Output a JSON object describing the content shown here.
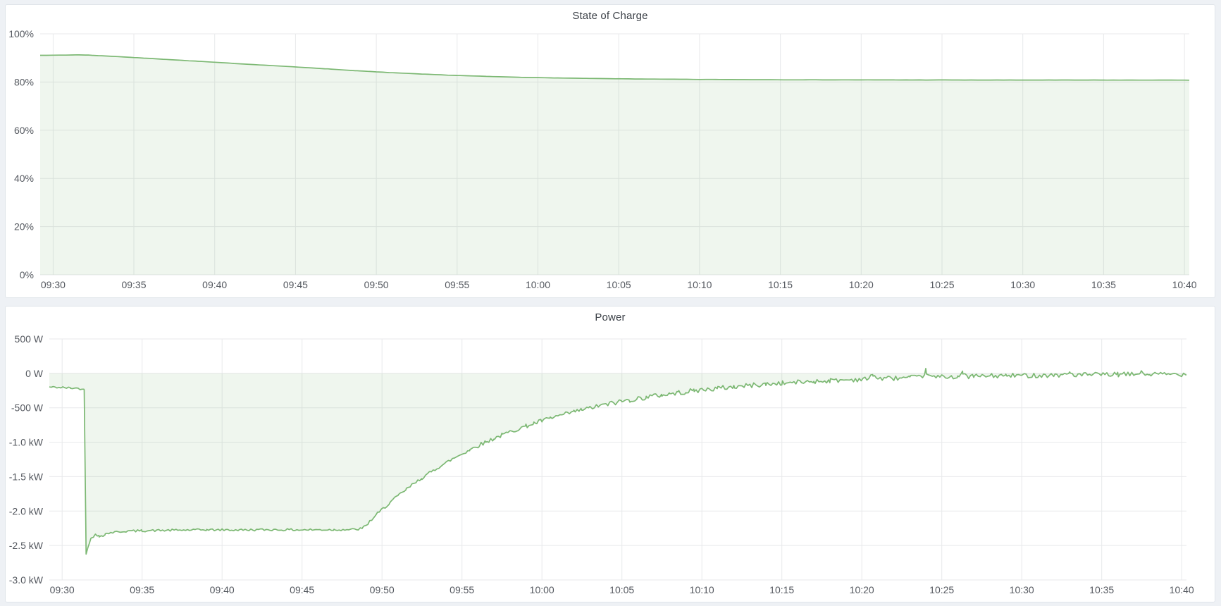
{
  "app": {
    "kind": "dashboard",
    "panel_count": 2
  },
  "colors": {
    "series_green": "#7cb873",
    "series_fill": "rgba(124,184,115,0.12)",
    "grid": "#e8e9eb",
    "tick_label": "#54585f",
    "title_text": "#3c4148",
    "page_bg": "#eef1f5",
    "panel_bg": "#ffffff",
    "panel_border": "#e0e5ea"
  },
  "chart_data": [
    {
      "type": "area",
      "title": "State of Charge",
      "ylabel": "",
      "xlabel": "",
      "unit": "%",
      "legend": "none",
      "grid": true,
      "x_domain_minutes": [
        -0.8,
        70.3
      ],
      "x_ticks": [
        {
          "t": 0,
          "label": "09:30"
        },
        {
          "t": 5,
          "label": "09:35"
        },
        {
          "t": 10,
          "label": "09:40"
        },
        {
          "t": 15,
          "label": "09:45"
        },
        {
          "t": 20,
          "label": "09:50"
        },
        {
          "t": 25,
          "label": "09:55"
        },
        {
          "t": 30,
          "label": "10:00"
        },
        {
          "t": 35,
          "label": "10:05"
        },
        {
          "t": 40,
          "label": "10:10"
        },
        {
          "t": 45,
          "label": "10:15"
        },
        {
          "t": 50,
          "label": "10:20"
        },
        {
          "t": 55,
          "label": "10:25"
        },
        {
          "t": 60,
          "label": "10:30"
        },
        {
          "t": 65,
          "label": "10:35"
        },
        {
          "t": 70,
          "label": "10:40"
        }
      ],
      "y_domain": [
        0,
        100
      ],
      "y_ticks": [
        {
          "v": 0,
          "label": "0%"
        },
        {
          "v": 20,
          "label": "20%"
        },
        {
          "v": 40,
          "label": "40%"
        },
        {
          "v": 60,
          "label": "60%"
        },
        {
          "v": 80,
          "label": "80%"
        },
        {
          "v": 100,
          "label": "100%"
        }
      ],
      "line_color": "#7cb873",
      "fill_color": "rgba(124,184,115,0.12)",
      "baseline": 0,
      "seed": 7,
      "sample_dt": 0.4,
      "noise": [
        [
          -0.8,
          70.3,
          0.03
        ]
      ],
      "spikes": [],
      "keypoints": [
        [
          -0.8,
          91.1
        ],
        [
          0,
          91.12
        ],
        [
          0.8,
          91.18
        ],
        [
          1.5,
          91.28
        ],
        [
          2.2,
          91.18
        ],
        [
          3,
          90.9
        ],
        [
          4,
          90.55
        ],
        [
          5,
          90.15
        ],
        [
          6,
          89.78
        ],
        [
          7,
          89.4
        ],
        [
          8,
          89.0
        ],
        [
          9,
          88.6
        ],
        [
          10,
          88.2
        ],
        [
          11,
          87.8
        ],
        [
          12,
          87.42
        ],
        [
          13,
          87.03
        ],
        [
          14,
          86.65
        ],
        [
          15,
          86.25
        ],
        [
          16,
          85.85
        ],
        [
          17,
          85.45
        ],
        [
          18,
          85.0
        ],
        [
          18.7,
          84.72
        ],
        [
          19.5,
          84.4
        ],
        [
          20,
          84.2
        ],
        [
          21,
          83.85
        ],
        [
          22,
          83.55
        ],
        [
          23,
          83.25
        ],
        [
          24,
          82.98
        ],
        [
          25,
          82.72
        ],
        [
          26,
          82.5
        ],
        [
          27,
          82.3
        ],
        [
          28,
          82.12
        ],
        [
          29,
          81.96
        ],
        [
          30,
          81.82
        ],
        [
          31,
          81.7
        ],
        [
          32,
          81.6
        ],
        [
          33,
          81.5
        ],
        [
          34,
          81.42
        ],
        [
          35,
          81.35
        ],
        [
          36,
          81.28
        ],
        [
          37,
          81.22
        ],
        [
          38,
          81.17
        ],
        [
          39,
          81.12
        ],
        [
          40,
          81.08
        ],
        [
          42,
          81.02
        ],
        [
          44,
          80.97
        ],
        [
          46,
          80.93
        ],
        [
          48,
          80.9
        ],
        [
          50,
          80.88
        ],
        [
          53,
          80.86
        ],
        [
          56,
          80.84
        ],
        [
          60,
          80.82
        ],
        [
          65,
          80.81
        ],
        [
          70.3,
          80.8
        ]
      ]
    },
    {
      "type": "area",
      "title": "Power",
      "ylabel": "",
      "xlabel": "",
      "unit": "W",
      "legend": "none",
      "grid": true,
      "x_domain_minutes": [
        -0.8,
        70.3
      ],
      "x_ticks": [
        {
          "t": 0,
          "label": "09:30"
        },
        {
          "t": 5,
          "label": "09:35"
        },
        {
          "t": 10,
          "label": "09:40"
        },
        {
          "t": 15,
          "label": "09:45"
        },
        {
          "t": 20,
          "label": "09:50"
        },
        {
          "t": 25,
          "label": "09:55"
        },
        {
          "t": 30,
          "label": "10:00"
        },
        {
          "t": 35,
          "label": "10:05"
        },
        {
          "t": 40,
          "label": "10:10"
        },
        {
          "t": 45,
          "label": "10:15"
        },
        {
          "t": 50,
          "label": "10:20"
        },
        {
          "t": 55,
          "label": "10:25"
        },
        {
          "t": 60,
          "label": "10:30"
        },
        {
          "t": 65,
          "label": "10:35"
        },
        {
          "t": 70,
          "label": "10:40"
        }
      ],
      "y_domain": [
        -3000,
        500
      ],
      "y_ticks": [
        {
          "v": 500,
          "label": "500 W"
        },
        {
          "v": 0,
          "label": "0 W"
        },
        {
          "v": -500,
          "label": "-500 W"
        },
        {
          "v": -1000,
          "label": "-1.0 kW"
        },
        {
          "v": -1500,
          "label": "-1.5 kW"
        },
        {
          "v": -2000,
          "label": "-2.0 kW"
        },
        {
          "v": -2500,
          "label": "-2.5 kW"
        },
        {
          "v": -3000,
          "label": "-3.0 kW"
        }
      ],
      "line_color": "#7cb873",
      "fill_color": "rgba(124,184,115,0.12)",
      "baseline": 0,
      "seed": 42,
      "sample_dt": 0.12,
      "noise": [
        [
          -0.8,
          1.3,
          14
        ],
        [
          1.3,
          1.9,
          6
        ],
        [
          1.9,
          2.6,
          25
        ],
        [
          2.6,
          18.6,
          16
        ],
        [
          18.6,
          25,
          22
        ],
        [
          25,
          34,
          30
        ],
        [
          34,
          44,
          36
        ],
        [
          44,
          70.3,
          34
        ]
      ],
      "spikes": [
        [
          50.7,
          70
        ],
        [
          54,
          95
        ],
        [
          56.3,
          45
        ],
        [
          63,
          38
        ],
        [
          67.4,
          32
        ]
      ],
      "keypoints": [
        [
          -0.8,
          -200
        ],
        [
          0,
          -205
        ],
        [
          0.5,
          -212
        ],
        [
          1.0,
          -218
        ],
        [
          1.38,
          -235
        ],
        [
          1.5,
          -2620
        ],
        [
          1.62,
          -2520
        ],
        [
          1.8,
          -2400
        ],
        [
          2.0,
          -2345
        ],
        [
          2.3,
          -2370
        ],
        [
          2.7,
          -2330
        ],
        [
          3.2,
          -2308
        ],
        [
          4,
          -2292
        ],
        [
          5,
          -2285
        ],
        [
          7,
          -2278
        ],
        [
          9,
          -2272
        ],
        [
          11,
          -2275
        ],
        [
          13,
          -2270
        ],
        [
          15,
          -2273
        ],
        [
          17,
          -2270
        ],
        [
          18.4,
          -2268
        ],
        [
          18.8,
          -2252
        ],
        [
          19.2,
          -2160
        ],
        [
          19.6,
          -2065
        ],
        [
          20,
          -1978
        ],
        [
          20.5,
          -1877
        ],
        [
          21,
          -1780
        ],
        [
          21.5,
          -1689
        ],
        [
          22,
          -1602
        ],
        [
          22.5,
          -1520
        ],
        [
          23,
          -1442
        ],
        [
          23.5,
          -1368
        ],
        [
          24,
          -1298
        ],
        [
          24.5,
          -1231
        ],
        [
          25,
          -1168
        ],
        [
          25.5,
          -1108
        ],
        [
          26,
          -1051
        ],
        [
          26.5,
          -997
        ],
        [
          27,
          -946
        ],
        [
          27.5,
          -897
        ],
        [
          28,
          -851
        ],
        [
          28.5,
          -808
        ],
        [
          29,
          -766
        ],
        [
          29.5,
          -727
        ],
        [
          30,
          -690
        ],
        [
          30.5,
          -654
        ],
        [
          31,
          -620
        ],
        [
          31.5,
          -589
        ],
        [
          32,
          -558
        ],
        [
          32.5,
          -530
        ],
        [
          33,
          -502
        ],
        [
          33.5,
          -477
        ],
        [
          34,
          -452
        ],
        [
          34.5,
          -429
        ],
        [
          35,
          -407
        ],
        [
          35.5,
          -386
        ],
        [
          36,
          -366
        ],
        [
          36.5,
          -348
        ],
        [
          37,
          -330
        ],
        [
          37.5,
          -313
        ],
        [
          38,
          -297
        ],
        [
          38.5,
          -282
        ],
        [
          39,
          -267
        ],
        [
          39.5,
          -253
        ],
        [
          40,
          -240
        ],
        [
          41,
          -217
        ],
        [
          42,
          -195
        ],
        [
          43,
          -176
        ],
        [
          44,
          -159
        ],
        [
          45,
          -143
        ],
        [
          46,
          -129
        ],
        [
          47,
          -117
        ],
        [
          48,
          -105
        ],
        [
          49,
          -95
        ],
        [
          50,
          -86
        ],
        [
          51,
          -77
        ],
        [
          52,
          -70
        ],
        [
          53,
          -63
        ],
        [
          54,
          -57
        ],
        [
          55,
          -51
        ],
        [
          56,
          -46
        ],
        [
          57,
          -42
        ],
        [
          58,
          -38
        ],
        [
          59,
          -34
        ],
        [
          60,
          -31
        ],
        [
          62,
          -25
        ],
        [
          64,
          -21
        ],
        [
          66,
          -17
        ],
        [
          68,
          -14
        ],
        [
          70.3,
          -12
        ]
      ]
    }
  ]
}
